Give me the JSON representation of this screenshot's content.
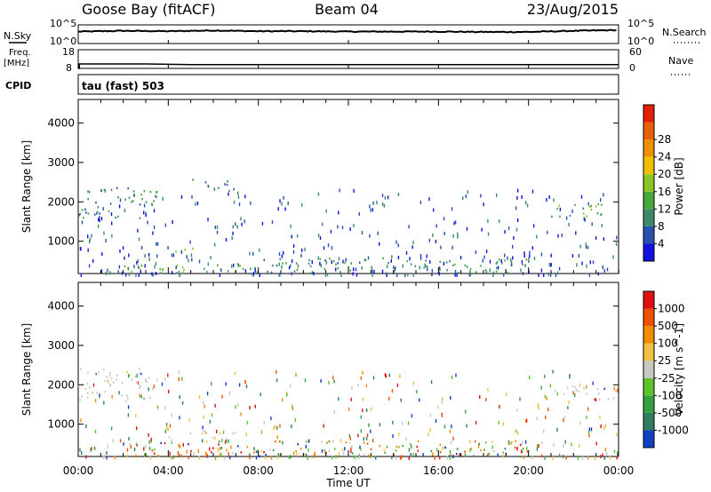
{
  "header": {
    "station": "Goose Bay (fitACF)",
    "beam": "Beam 04",
    "date": "23/Aug/2015",
    "cpid": "tau (fast) 503"
  },
  "strip_labels": {
    "nsky": "N.Sky",
    "nsearch": "N.Search",
    "freq_line1": "Freq.",
    "freq_line2": "[MHz]",
    "cpid": "CPID",
    "nave": "Nave",
    "nsky_top": "10^5",
    "nsky_bottom": "10^0",
    "freq_top": "18",
    "freq_bottom": "8",
    "nave_top": "60",
    "nave_bottom": "0"
  },
  "chart_data": [
    {
      "type": "line",
      "name": "Noise (N.Sky / N.Search)",
      "x": [
        "00:00",
        "02:00",
        "04:00",
        "06:00",
        "08:00",
        "10:00",
        "12:00",
        "14:00",
        "16:00",
        "18:00",
        "20:00",
        "22:00",
        "24:00"
      ],
      "values": [
        3.2,
        3.4,
        3.3,
        3.5,
        3.3,
        3.3,
        3.2,
        3.2,
        3.2,
        3.1,
        3.1,
        3.4,
        3.6
      ],
      "ylim": [
        0,
        5
      ]
    },
    {
      "type": "line",
      "name": "Frequency / Nave",
      "x": [
        "00:00",
        "01:00",
        "02:00",
        "03:00",
        "04:00",
        "05:00",
        "06:00",
        "08:00",
        "12:00",
        "16:00",
        "20:00",
        "24:00"
      ],
      "values": [
        10.4,
        10.4,
        10.4,
        10.4,
        10.2,
        10.0,
        10.0,
        10.0,
        10.0,
        10.0,
        10.0,
        10.0
      ],
      "ylim": [
        8,
        18
      ]
    },
    {
      "type": "heatmap",
      "ylabel": "Slant Range [km]",
      "xlabel": "Time UT",
      "xlim": [
        0,
        24
      ],
      "ylim": [
        180,
        4600
      ],
      "yticks": [
        1000,
        2000,
        3000,
        4000
      ],
      "xticks": [
        "00:00",
        "04:00",
        "08:00",
        "12:00",
        "16:00",
        "20:00",
        "00:00"
      ],
      "colorbar": {
        "label": "Power [dB]",
        "ticks": [
          "4",
          "8",
          "12",
          "16",
          "20",
          "24",
          "28"
        ],
        "colors": [
          "#1010e0",
          "#2850b0",
          "#3c8a6c",
          "#46a83a",
          "#8cc424",
          "#f0c000",
          "#f09000",
          "#e86000",
          "#e02000"
        ]
      },
      "bands": [
        {
          "t": [
            0,
            3.5
          ],
          "r": [
            1600,
            2450
          ],
          "power": 9
        },
        {
          "t": [
            2,
            7.5
          ],
          "r": [
            200,
            450
          ],
          "power": 14
        },
        {
          "t": [
            4,
            5.5
          ],
          "r": [
            700,
            850
          ],
          "power": 13
        },
        {
          "t": [
            5,
            7
          ],
          "r": [
            2300,
            2600
          ],
          "power": 8
        },
        {
          "t": [
            7.5,
            20
          ],
          "r": [
            200,
            600
          ],
          "power": 10
        },
        {
          "t": [
            21,
            24
          ],
          "r": [
            1650,
            2000
          ],
          "power": 14
        }
      ]
    },
    {
      "type": "heatmap",
      "ylabel": "Slant Range [km]",
      "xlabel": "Time UT",
      "xlim": [
        0,
        24
      ],
      "ylim": [
        180,
        4600
      ],
      "yticks": [
        1000,
        2000,
        3000,
        4000
      ],
      "xticks": [
        "00:00",
        "04:00",
        "08:00",
        "12:00",
        "16:00",
        "20:00",
        "00:00"
      ],
      "colorbar": {
        "label": "Velocity [m s^-1]",
        "ticks": [
          "1000",
          "500",
          "100",
          "25",
          "-25",
          "-100",
          "-500",
          "-1000"
        ],
        "colors": [
          "#1040c0",
          "#2f7f5f",
          "#35a040",
          "#5cc32c",
          "#c8c8c0",
          "#f0c040",
          "#f08c00",
          "#f05000",
          "#e01010"
        ]
      },
      "bands": [
        {
          "t": [
            0,
            3.5
          ],
          "r": [
            1600,
            2450
          ],
          "velocity": 0
        },
        {
          "t": [
            4,
            7
          ],
          "r": [
            650,
            850
          ],
          "velocity": 0
        },
        {
          "t": [
            2,
            20
          ],
          "r": [
            200,
            600
          ],
          "velocity": 200
        },
        {
          "t": [
            21,
            24
          ],
          "r": [
            1650,
            2000
          ],
          "velocity": 0
        }
      ]
    }
  ]
}
